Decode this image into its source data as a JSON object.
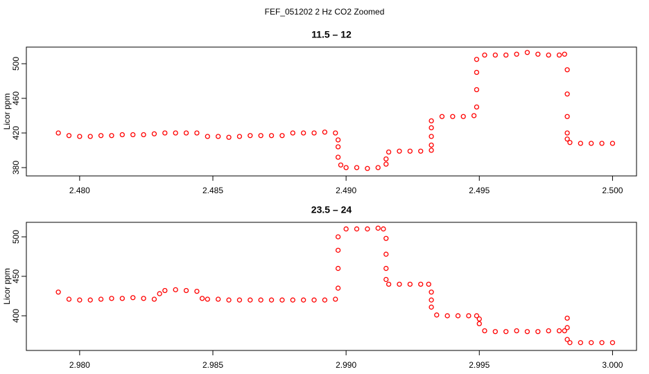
{
  "title": "FEF_051202  2 Hz CO2 Zoomed",
  "chart_data": [
    {
      "type": "scatter",
      "title": "11.5 – 12",
      "y_label": "Licor ppm",
      "color": "#ff0000",
      "x": [
        2.4792,
        2.4796,
        2.48,
        2.4804,
        2.4808,
        2.4812,
        2.4816,
        2.482,
        2.4824,
        2.4828,
        2.4832,
        2.4836,
        2.484,
        2.4844,
        2.4848,
        2.4852,
        2.4856,
        2.486,
        2.4864,
        2.4868,
        2.4872,
        2.4876,
        2.488,
        2.4884,
        2.4888,
        2.4892,
        2.4896,
        2.4897,
        2.4897,
        2.4897,
        2.4898,
        2.49,
        2.4904,
        2.4908,
        2.4912,
        2.4915,
        2.4915,
        2.4916,
        2.492,
        2.4924,
        2.4928,
        2.4932,
        2.4932,
        2.4932,
        2.4932,
        2.4932,
        2.4936,
        2.494,
        2.4944,
        2.4948,
        2.4949,
        2.4949,
        2.4949,
        2.4949,
        2.4952,
        2.4956,
        2.496,
        2.4964,
        2.4968,
        2.4972,
        2.4976,
        2.498,
        2.4982,
        2.4983,
        2.4983,
        2.4983,
        2.4983,
        2.4983,
        2.4984,
        2.4988,
        2.4992,
        2.4996,
        2.5
      ],
      "values": [
        420,
        417,
        416,
        416,
        417,
        417,
        418,
        418,
        418,
        419,
        420,
        420,
        420,
        420,
        416,
        416,
        415,
        416,
        417,
        417,
        417,
        417,
        420,
        420,
        420,
        421,
        420,
        412,
        404,
        392,
        383,
        380,
        380,
        379,
        380,
        384,
        390,
        398,
        399,
        399,
        399,
        400,
        406,
        416,
        426,
        434,
        439,
        439,
        439,
        440,
        450,
        470,
        490,
        505,
        510,
        510,
        510,
        511,
        513,
        511,
        510,
        510,
        511,
        493,
        465,
        439,
        420,
        413,
        409,
        408,
        408,
        408,
        408
      ],
      "xlim": [
        2.478,
        2.5009
      ],
      "ylim": [
        370.4,
        519.2
      ],
      "xticks": [
        {
          "value": 2.48,
          "label": "2.480"
        },
        2.485,
        {
          "value": 2.49,
          "label": "2.490"
        },
        2.495,
        {
          "value": 2.5,
          "label": "2.500"
        }
      ],
      "yticks": [
        380,
        420,
        460,
        500
      ]
    },
    {
      "type": "scatter",
      "title": "23.5 – 24",
      "y_label": "Licor ppm",
      "color": "#ff0000",
      "x": [
        2.9792,
        2.9796,
        2.98,
        2.9804,
        2.9808,
        2.9812,
        2.9816,
        2.982,
        2.9824,
        2.9828,
        2.983,
        2.9832,
        2.9836,
        2.984,
        2.9844,
        2.9846,
        2.9848,
        2.9852,
        2.9856,
        2.986,
        2.9864,
        2.9868,
        2.9872,
        2.9876,
        2.988,
        2.9884,
        2.9888,
        2.9892,
        2.9896,
        2.9897,
        2.9897,
        2.9897,
        2.9897,
        2.99,
        2.9904,
        2.9908,
        2.9912,
        2.9914,
        2.9915,
        2.9915,
        2.9915,
        2.9915,
        2.9916,
        2.992,
        2.9924,
        2.9928,
        2.9931,
        2.9932,
        2.9932,
        2.9932,
        2.9934,
        2.9938,
        2.9942,
        2.9946,
        2.9949,
        2.995,
        2.995,
        2.9952,
        2.9956,
        2.996,
        2.9964,
        2.9968,
        2.9972,
        2.9976,
        2.998,
        2.9982,
        2.9983,
        2.9983,
        2.9983,
        2.9984,
        2.9988,
        2.9992,
        2.9996,
        3
      ],
      "values": [
        430,
        421,
        420,
        420,
        421,
        422,
        422,
        423,
        422,
        421,
        428,
        432,
        433,
        432,
        431,
        422,
        421,
        421,
        420,
        420,
        420,
        420,
        420,
        420,
        420,
        420,
        420,
        420,
        421,
        435,
        460,
        483,
        500,
        510,
        510,
        510,
        511,
        510,
        498,
        478,
        460,
        446,
        440,
        440,
        440,
        440,
        440,
        430,
        420,
        411,
        401,
        400,
        400,
        400,
        400,
        396,
        390,
        381,
        380,
        380,
        381,
        380,
        380,
        381,
        381,
        381,
        397,
        385,
        370,
        366,
        366,
        366,
        366,
        366
      ],
      "xlim": [
        2.978,
        3.0009
      ],
      "ylim": [
        356.1,
        518.4
      ],
      "xticks": [
        {
          "value": 2.98,
          "label": "2.980"
        },
        2.985,
        {
          "value": 2.99,
          "label": "2.990"
        },
        2.995,
        {
          "value": 3,
          "label": "3.000"
        }
      ],
      "yticks": [
        400,
        450,
        500
      ]
    }
  ]
}
